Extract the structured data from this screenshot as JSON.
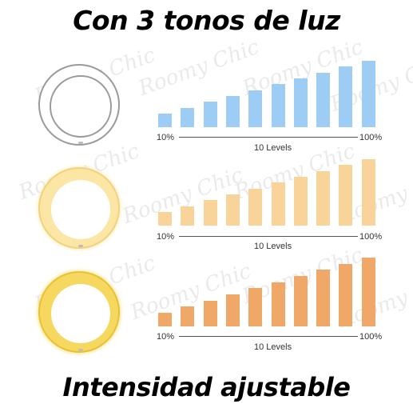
{
  "heading": {
    "top": "Con 3 tonos de luz",
    "bottom": "Intensidad ajustable"
  },
  "watermark_text": "Roomy Chic",
  "palette": {
    "cool": "#9dccf5",
    "neutral": "#f8d49a",
    "warm": "#f0a868"
  },
  "tones": [
    {
      "ring_icon": "white-ring-light-icon",
      "ring_color": "#ffffff",
      "bar_color": "#9dccf5",
      "axis_min": "10%",
      "axis_max": "100%",
      "axis_caption": "10 Levels",
      "levels": [
        10,
        20,
        30,
        40,
        50,
        60,
        70,
        80,
        90,
        100
      ]
    },
    {
      "ring_icon": "neutral-ring-light-icon",
      "ring_color": "#fbe6a6",
      "bar_color": "#f8d49a",
      "axis_min": "10%",
      "axis_max": "100%",
      "axis_caption": "10 Levels",
      "levels": [
        10,
        20,
        30,
        40,
        50,
        60,
        70,
        80,
        90,
        100
      ]
    },
    {
      "ring_icon": "warm-ring-light-icon",
      "ring_color": "#f6d860",
      "bar_color": "#f0a868",
      "axis_min": "10%",
      "axis_max": "100%",
      "axis_caption": "10 Levels",
      "levels": [
        10,
        20,
        30,
        40,
        50,
        60,
        70,
        80,
        90,
        100
      ]
    }
  ]
}
